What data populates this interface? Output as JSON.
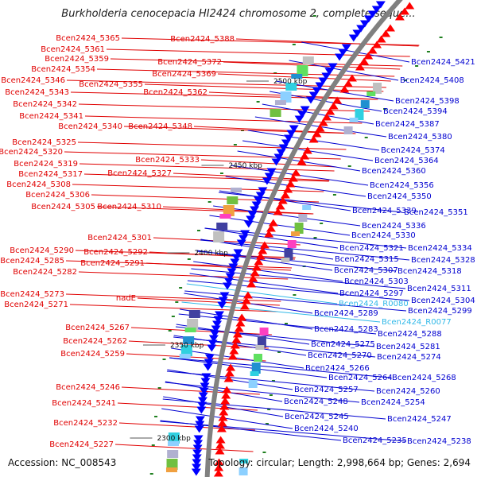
{
  "title": "Burkholderia cenocepacia HI2424 chromosome 2, complete seque...",
  "footer": {
    "accession": "Accession: NC_008543",
    "topology": "Topology: circular; Length: 2,998,664 bp; Genes: 2,694"
  },
  "colors": {
    "left_label": "#e00000",
    "right_label": "#0000d0",
    "highlight_label": "#30b8e8",
    "backbone": "#808080",
    "forward_arrow": "#ff0000",
    "reverse_arrow": "#0000ff"
  },
  "kbp_markers": [
    "2500 kbp",
    "2450 kbp",
    "2400 kbp",
    "2350 kbp",
    "2300 kbp"
  ],
  "left_labels": [
    "Bcen2424_5365",
    "Bcen2424_5388",
    "Bcen2424_5361",
    "Bcen2424_5359",
    "Bcen2424_5372",
    "Bcen2424_5354",
    "Bcen2424_5369",
    "Bcen2424_5346",
    "Bcen2424_5355",
    "Bcen2424_5362",
    "Bcen2424_5343",
    "Bcen2424_5342",
    "Bcen2424_5341",
    "Bcen2424_5340",
    "Bcen2424_5348",
    "Bcen2424_5325",
    "Bcen2424_5320",
    "Bcen2424_5333",
    "Bcen2424_5319",
    "Bcen2424_5317",
    "Bcen2424_5327",
    "Bcen2424_5308",
    "Bcen2424_5306",
    "Bcen2424_5305",
    "Bcen2424_5310",
    "Bcen2424_5301",
    "Bcen2424_5290",
    "Bcen2424_5292",
    "Bcen2424_5285",
    "Bcen2424_5291",
    "Bcen2424_5282",
    "Bcen2424_5273",
    "nadE",
    "Bcen2424_5271",
    "Bcen2424_5267",
    "Bcen2424_5262",
    "Bcen2424_5259",
    "Bcen2424_5246",
    "Bcen2424_5241",
    "Bcen2424_5232",
    "Bcen2424_5227"
  ],
  "right_labels": [
    "Bcen2424_5421",
    "Bcen2424_5408",
    "Bcen2424_5398",
    "Bcen2424_5394",
    "Bcen2424_5387",
    "Bcen2424_5380",
    "Bcen2424_5374",
    "Bcen2424_5364",
    "Bcen2424_5360",
    "Bcen2424_5356",
    "Bcen2424_5350",
    "Bcen2424_5339",
    "Bcen2424_5351",
    "Bcen2424_5336",
    "Bcen2424_5330",
    "Bcen2424_5321",
    "Bcen2424_5334",
    "Bcen2424_5315",
    "Bcen2424_5328",
    "Bcen2424_5307",
    "Bcen2424_5318",
    "Bcen2424_5303",
    "Bcen2424_5311",
    "Bcen2424_5297",
    "Bcen2424_5304",
    "Bcen2424_R0080",
    "Bcen2424_5299",
    "Bcen2424_5289",
    "Bcen2424_R0077",
    "Bcen2424_5283",
    "Bcen2424_5288",
    "Bcen2424_5275",
    "Bcen2424_5281",
    "Bcen2424_5270",
    "Bcen2424_5274",
    "Bcen2424_5266",
    "Bcen2424_5264",
    "Bcen2424_5268",
    "Bcen2424_5257",
    "Bcen2424_5260",
    "Bcen2424_5248",
    "Bcen2424_5254",
    "Bcen2424_5245",
    "Bcen2424_5247",
    "Bcen2424_5240",
    "Bcen2424_5235",
    "Bcen2424_5238"
  ]
}
